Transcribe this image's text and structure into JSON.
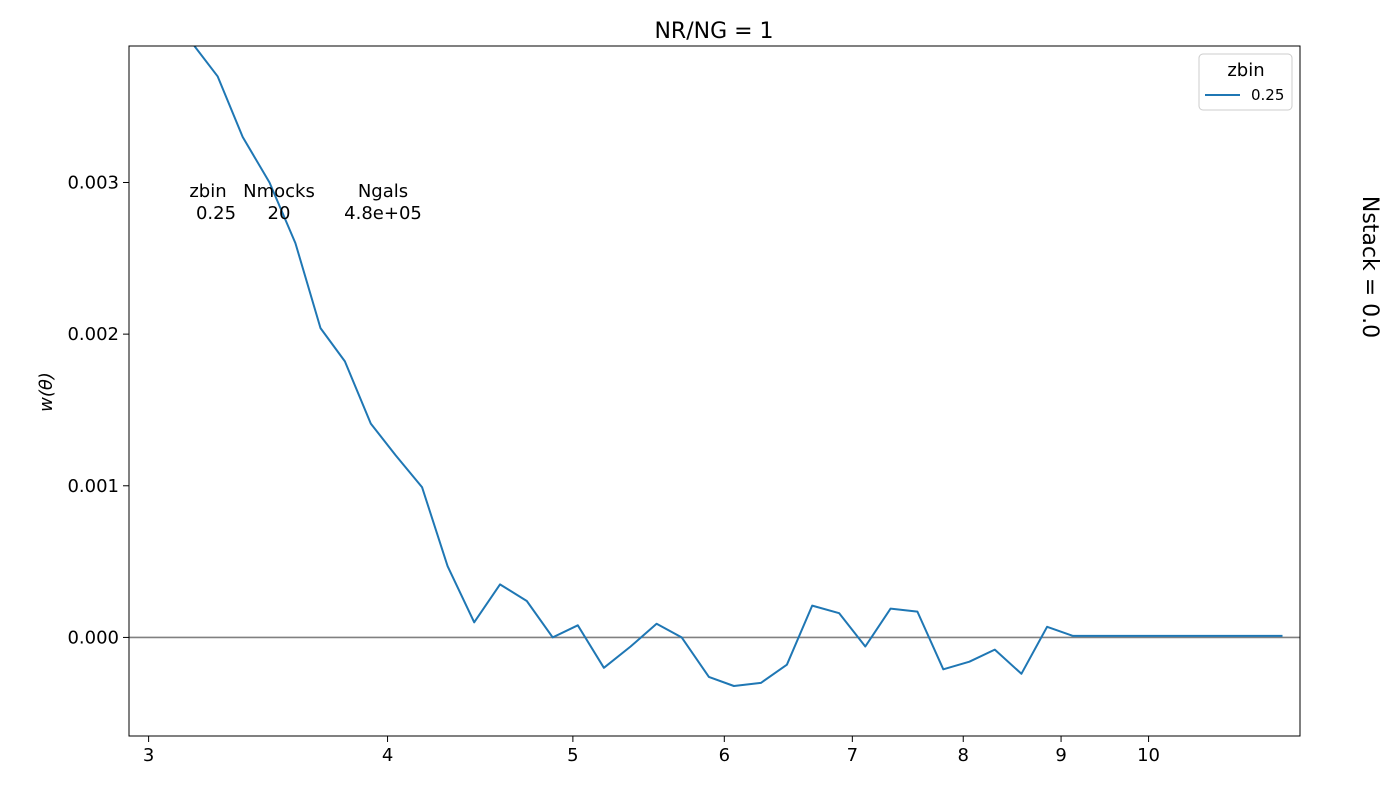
{
  "chart_data": {
    "type": "line",
    "title": "NR/NG = 1",
    "xlabel": "",
    "ylabel": "w(θ)",
    "right_label": "Nstack = 0.0",
    "x_scale": "log",
    "xlim": [
      2.93,
      12.0
    ],
    "ylim": [
      -0.00065,
      0.0039
    ],
    "x_ticks": [
      3,
      4,
      5,
      6,
      7,
      8,
      9,
      10
    ],
    "x_tick_labels": [
      "3",
      "4",
      "5",
      "6",
      "7",
      "8",
      "9",
      "10"
    ],
    "y_ticks": [
      0.0,
      0.001,
      0.002,
      0.003
    ],
    "y_tick_labels": [
      "0.000",
      "0.001",
      "0.002",
      "0.003"
    ],
    "hline": 0.0,
    "grid": false,
    "legend": {
      "title": "zbin",
      "position": "top-right",
      "entries": [
        "0.25"
      ]
    },
    "annotation_table": {
      "headers": [
        "zbin",
        "Nmocks",
        "Ngals"
      ],
      "values": [
        "0.25",
        "20",
        "4.8e+05"
      ]
    },
    "series": [
      {
        "name": "0.25",
        "color": "#1f77b4",
        "x": [
          3.17,
          3.26,
          3.36,
          3.47,
          3.58,
          3.69,
          3.8,
          3.92,
          4.04,
          4.17,
          4.3,
          4.44,
          4.58,
          4.73,
          4.88,
          5.03,
          5.19,
          5.36,
          5.53,
          5.7,
          5.89,
          6.07,
          6.27,
          6.47,
          6.67,
          6.89,
          7.11,
          7.33,
          7.57,
          7.81,
          8.06,
          8.31,
          8.58,
          8.85,
          9.13,
          9.43,
          9.73,
          10.04,
          10.36,
          10.69,
          11.04,
          11.39,
          11.75
        ],
        "y": [
          0.0039,
          0.0037,
          0.0033,
          0.003,
          0.0026,
          0.00204,
          0.00182,
          0.00141,
          0.0012,
          0.00099,
          0.00047,
          0.0001,
          0.00035,
          0.00024,
          0.0,
          8e-05,
          -0.0002,
          -6e-05,
          9e-05,
          0.0,
          -0.00026,
          -0.00032,
          -0.0003,
          -0.00018,
          0.00021,
          0.00016,
          -6e-05,
          0.00019,
          0.00017,
          -0.00021,
          -0.00016,
          -8e-05,
          -0.00024,
          7e-05,
          1e-05,
          1e-05,
          1e-05,
          1e-05,
          1e-05,
          1e-05,
          1e-05,
          1e-05,
          1e-05
        ]
      }
    ]
  }
}
